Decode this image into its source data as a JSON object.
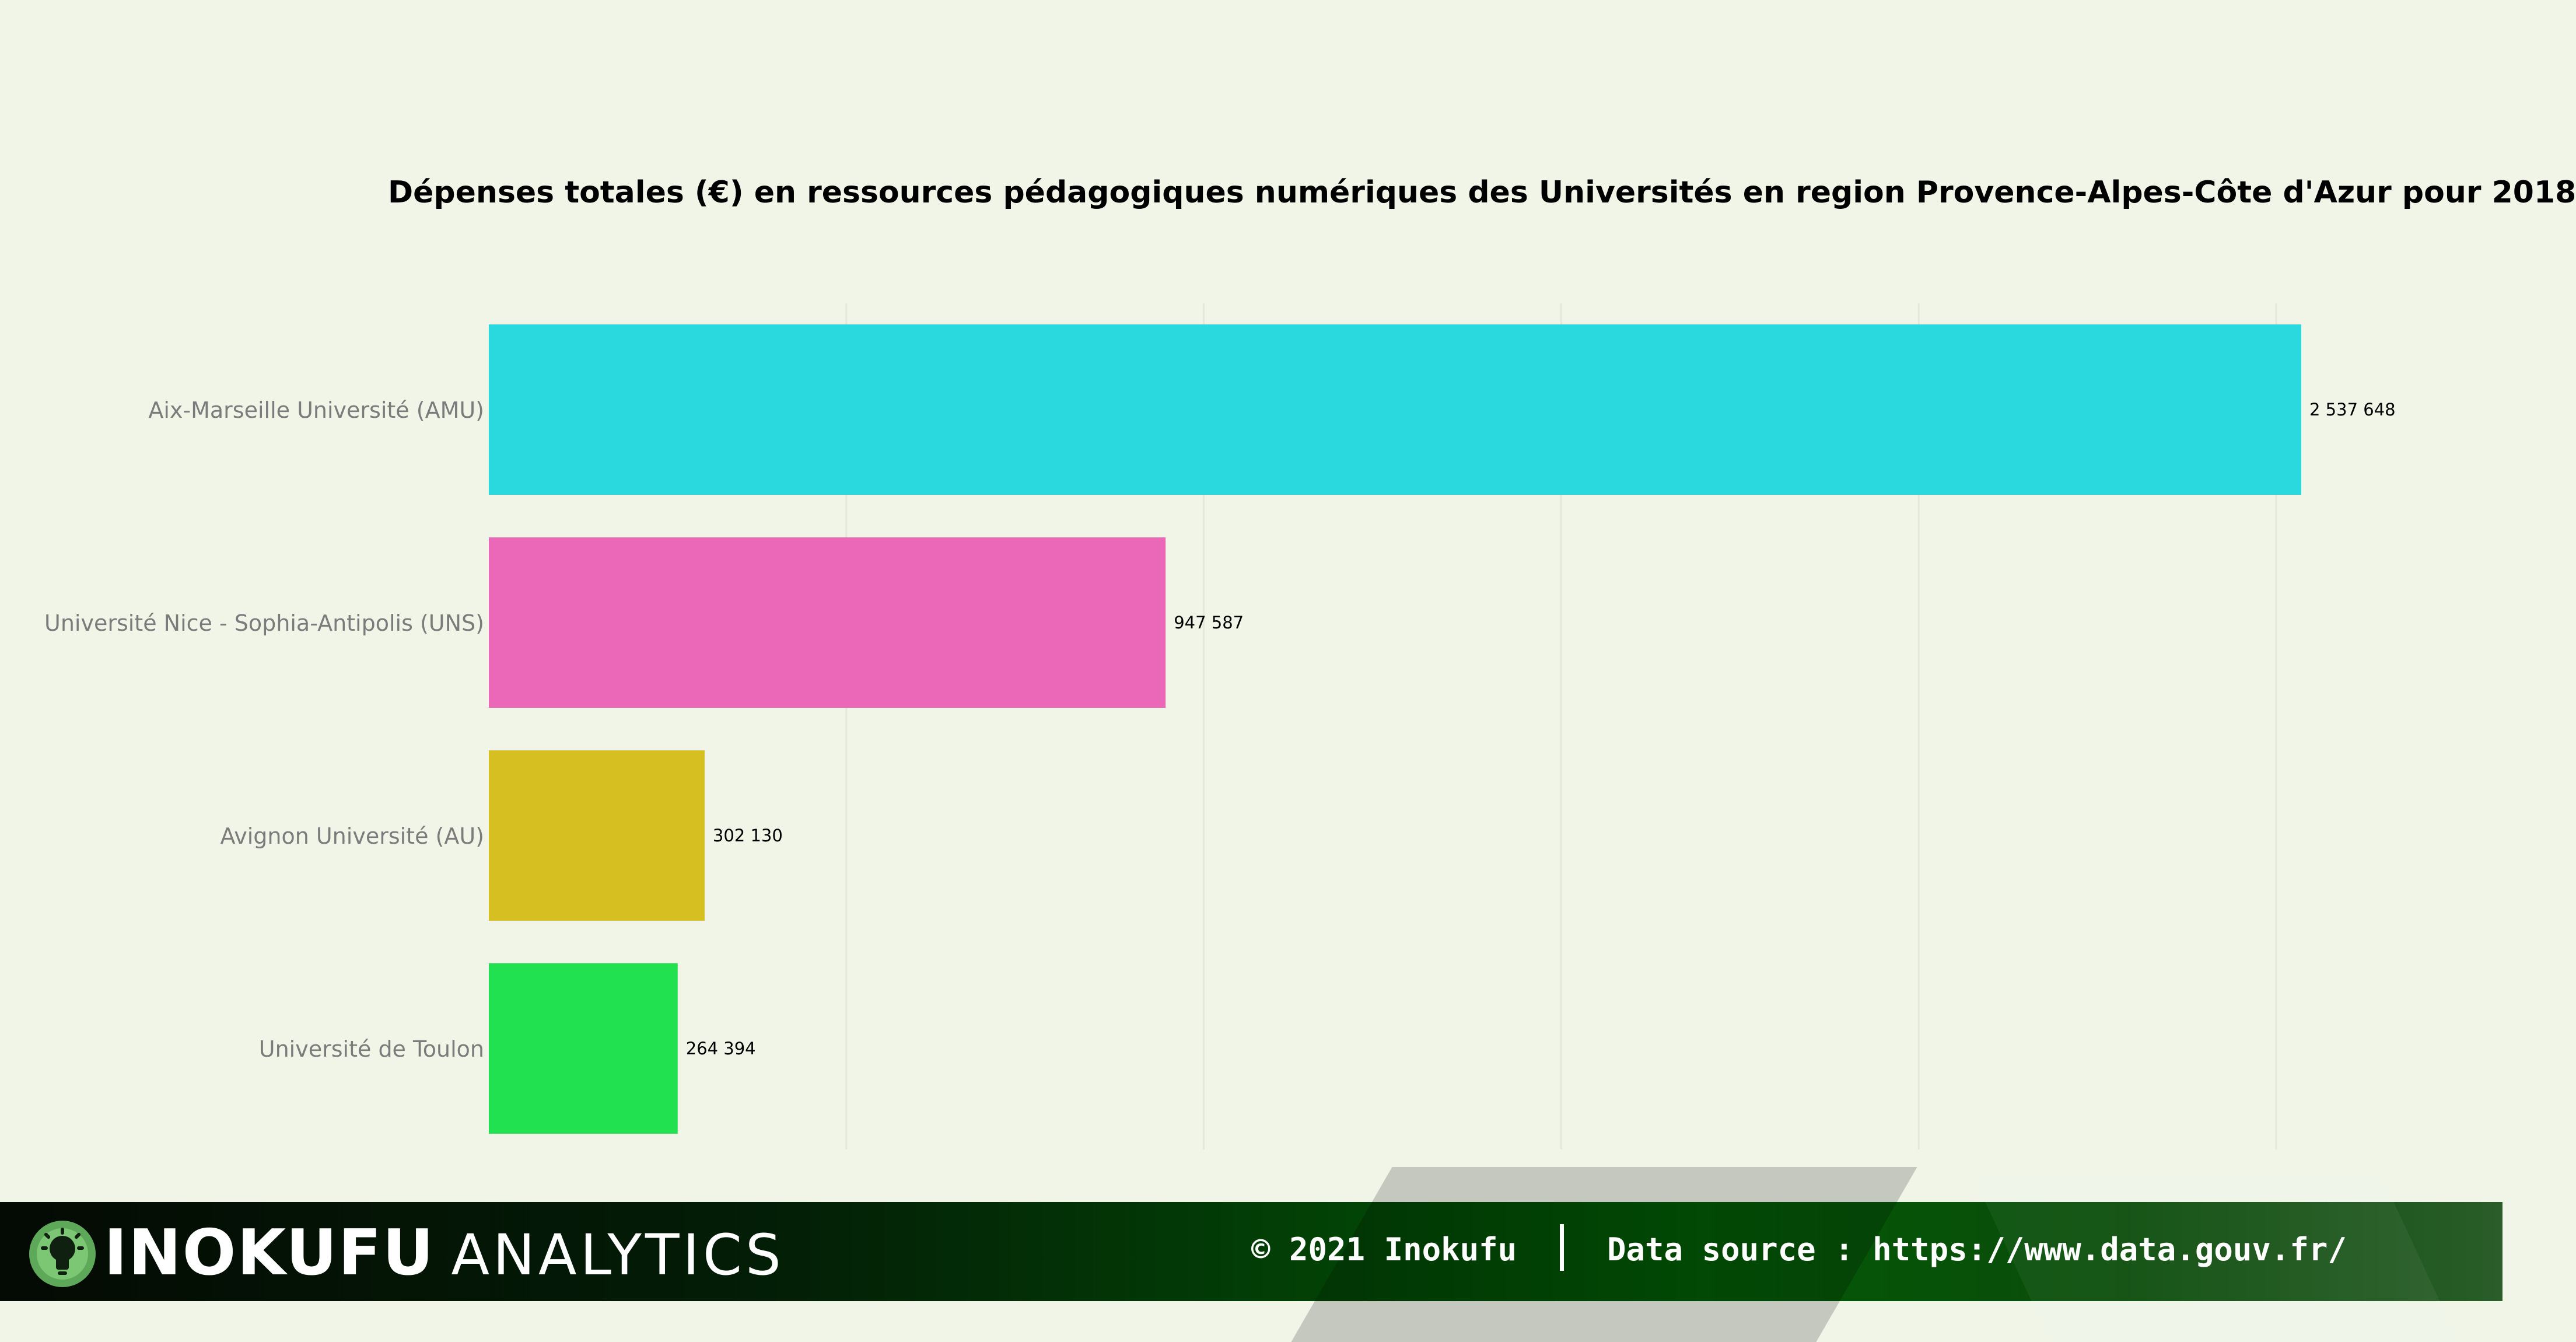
{
  "chart_data": {
    "type": "bar",
    "orientation": "horizontal",
    "title": "Dépenses totales (€) en ressources pédagogiques numériques des Universités en region Provence-Alpes-Côte d'Azur pour 2018",
    "xlabel": "",
    "ylabel": "",
    "categories": [
      "Aix-Marseille Université (AMU)",
      "Université Nice - Sophia-Antipolis (UNS)",
      "Avignon Université (AU)",
      "Université de Toulon"
    ],
    "values": [
      2537648,
      947587,
      302130,
      264394
    ],
    "value_labels": [
      "2 537 648",
      "947 587",
      "302 130",
      "264 394"
    ],
    "colors": [
      "#29d9de",
      "#ea68b7",
      "#d6bf21",
      "#21e150"
    ],
    "xlim": [
      0,
      2537648
    ],
    "grid": "vertical",
    "legend": "none"
  },
  "footer": {
    "brand": "INOKUFU",
    "brand_suffix": "ANALYTICS",
    "copyright": "© 2021 Inokufu",
    "source": "Data source : https://www.data.gouv.fr/"
  }
}
